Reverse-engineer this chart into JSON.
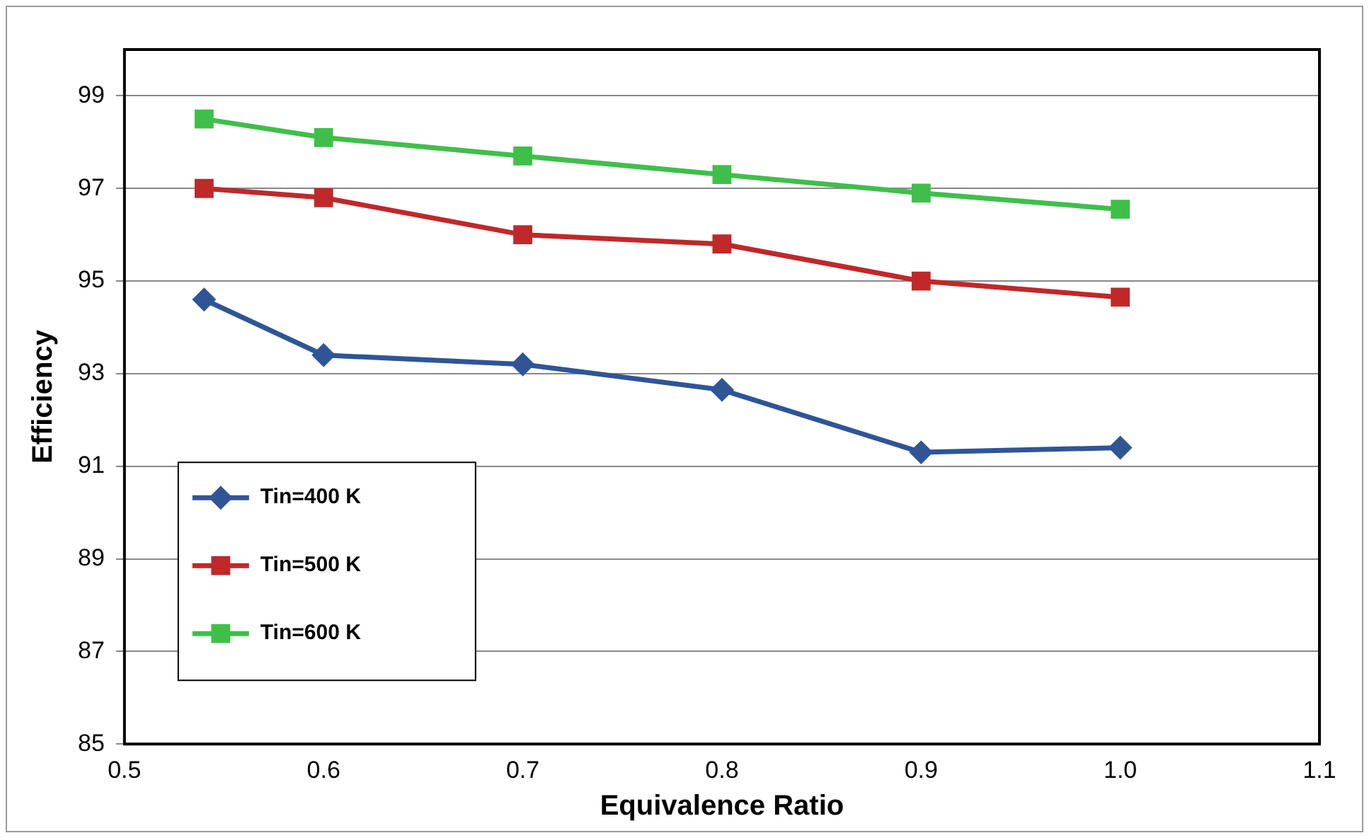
{
  "chart_data": {
    "type": "line",
    "xlabel": "Equivalence Ratio",
    "ylabel": "Efficiency",
    "x": [
      0.54,
      0.6,
      0.7,
      0.8,
      0.9,
      1.0
    ],
    "series": [
      {
        "name": "Tin=400 K",
        "color": "#2f5597",
        "marker": "diamond",
        "values": [
          94.6,
          93.4,
          93.2,
          92.65,
          91.3,
          91.4
        ]
      },
      {
        "name": "Tin=500 K",
        "color": "#c0282a",
        "marker": "square",
        "values": [
          97.0,
          96.8,
          96.0,
          95.8,
          95.0,
          94.65
        ]
      },
      {
        "name": "Tin=600 K",
        "color": "#3fbf4a",
        "marker": "square",
        "values": [
          98.5,
          98.1,
          97.7,
          97.3,
          96.9,
          96.55
        ]
      }
    ],
    "xlim": [
      0.5,
      1.1
    ],
    "xticks": [
      0.5,
      0.6,
      0.7,
      0.8,
      0.9,
      {
        "value": 1.0,
        "label": "1.0"
      },
      1.1
    ],
    "ylim": [
      85,
      100
    ],
    "yticks": [
      85,
      87,
      89,
      91,
      93,
      95,
      97,
      99
    ],
    "grid": "y",
    "legend": "bottom left",
    "line_style": "solid"
  }
}
